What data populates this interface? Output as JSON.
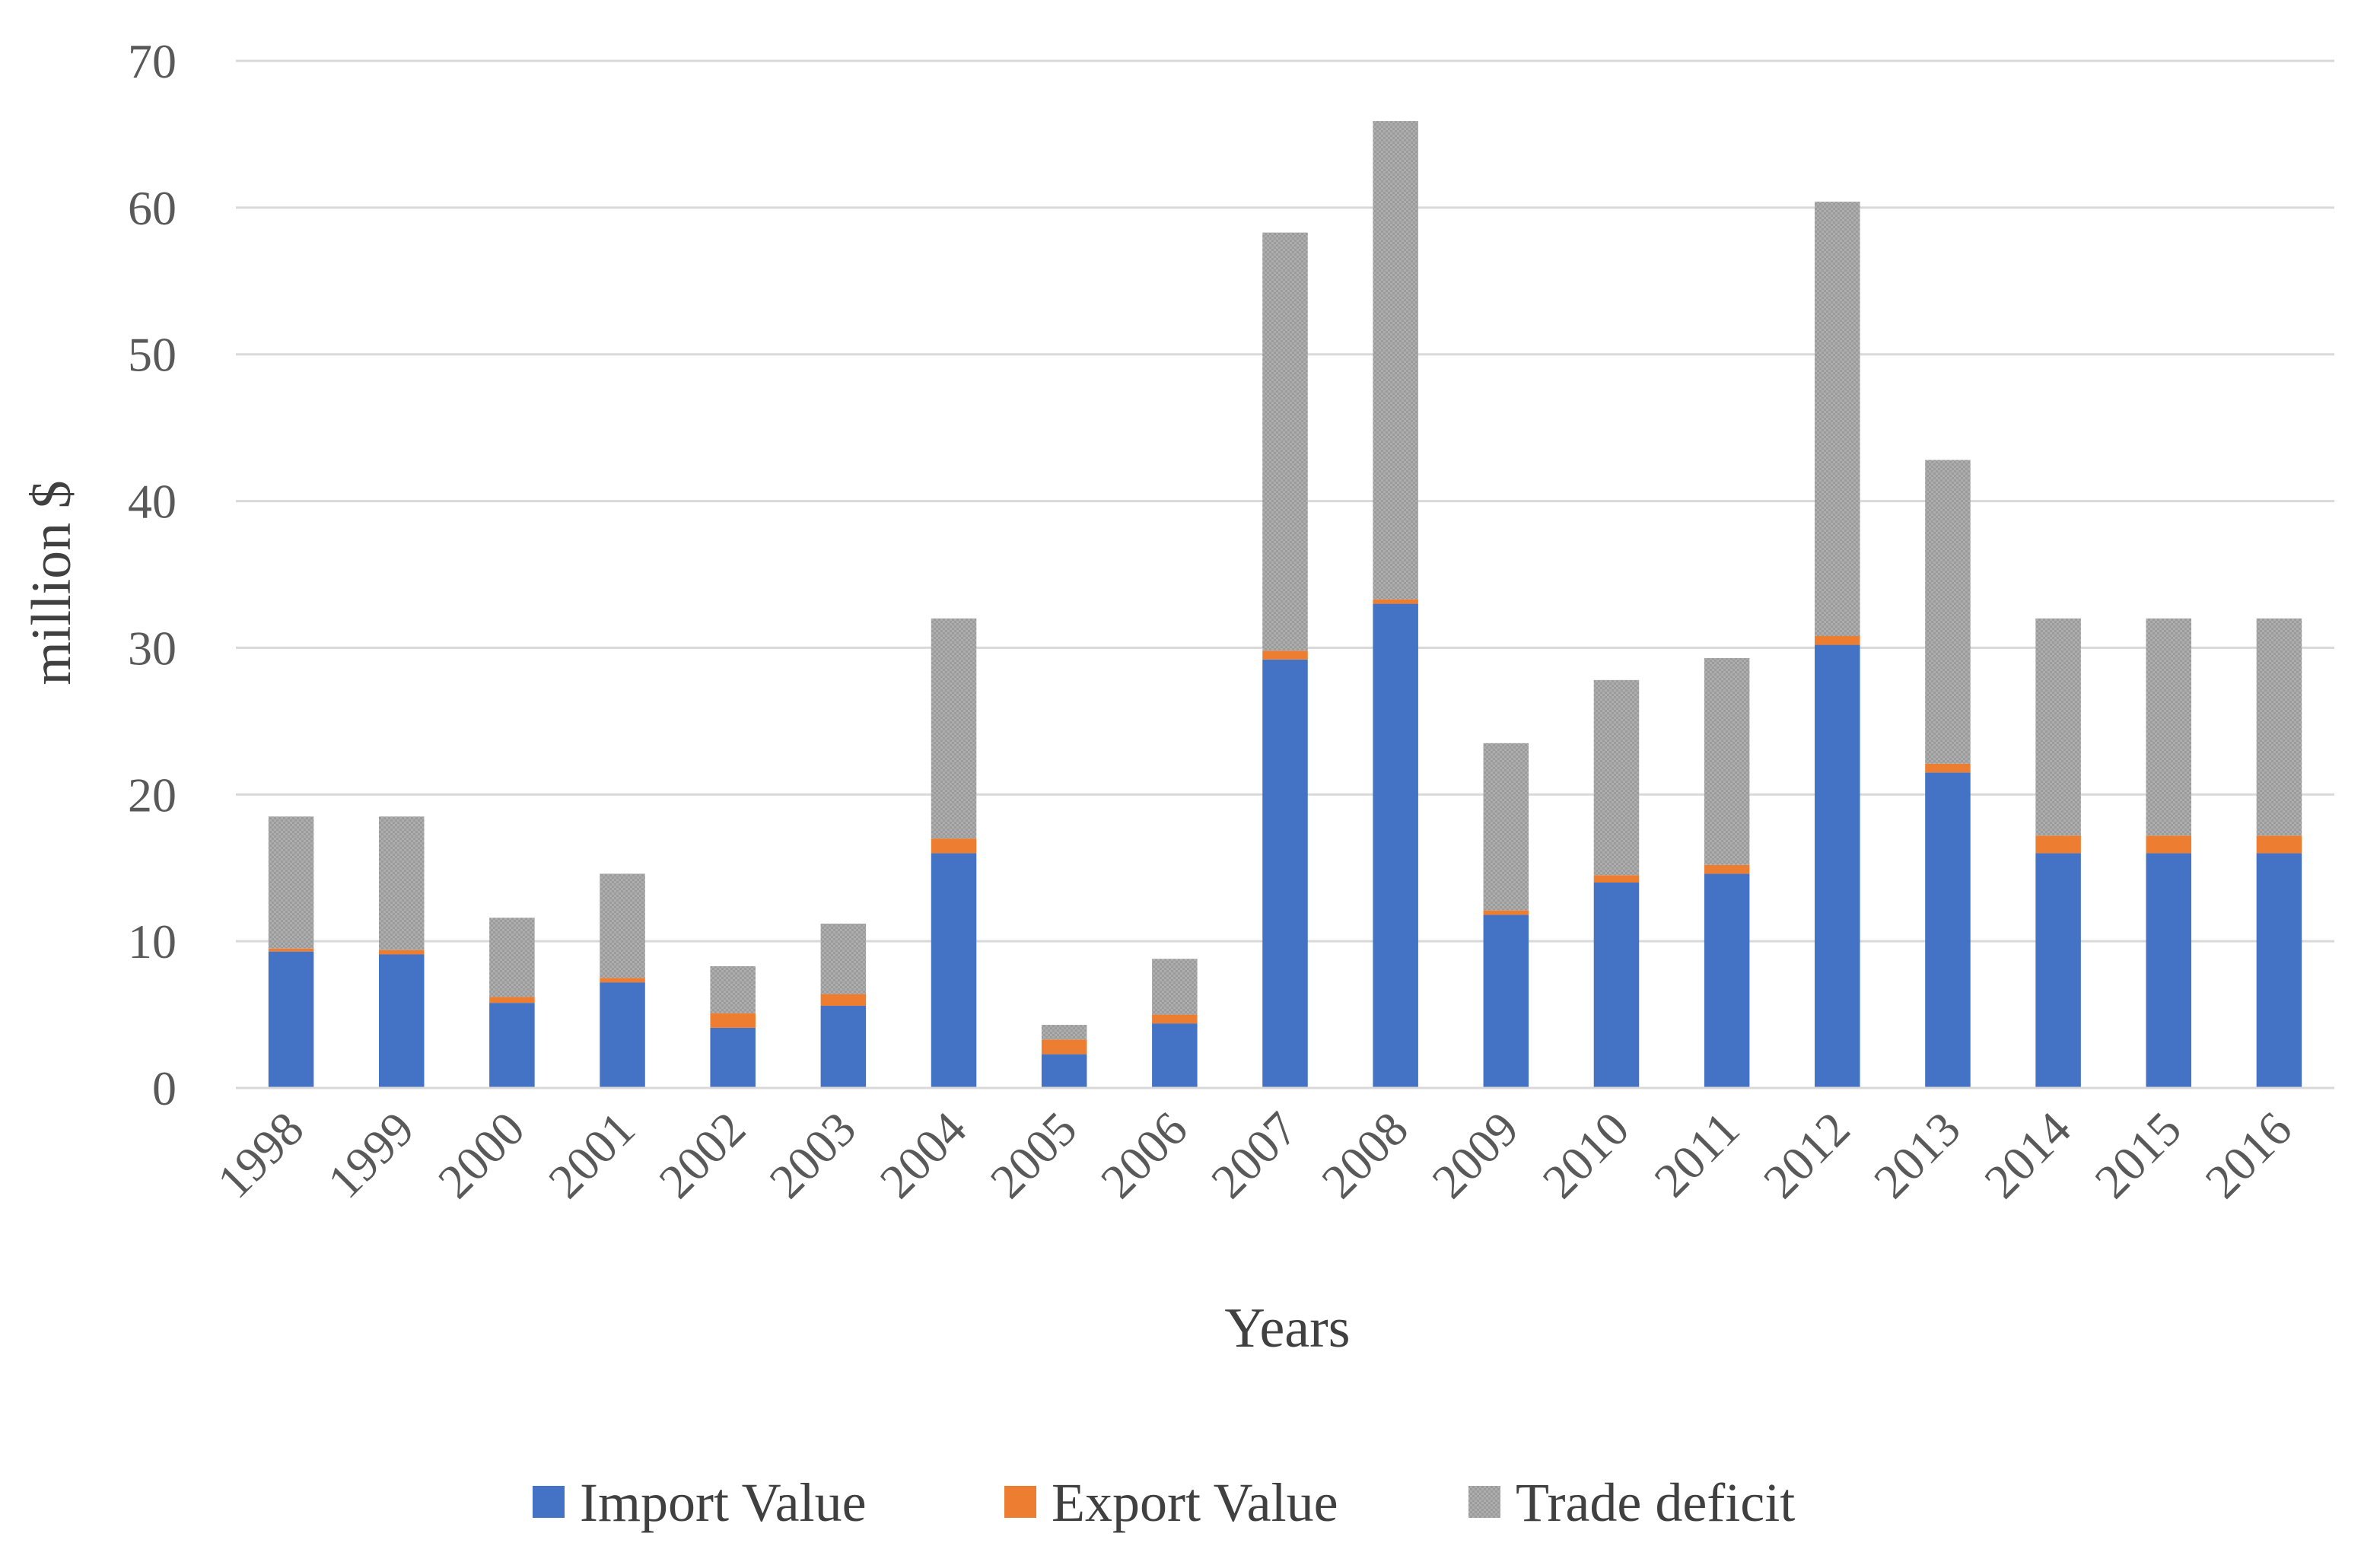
{
  "chart_data": {
    "type": "bar",
    "stacked": true,
    "title": "",
    "xlabel": "Years",
    "ylabel": "million $",
    "ylim": [
      0,
      70
    ],
    "yticks": [
      0,
      10,
      20,
      30,
      40,
      50,
      60,
      70
    ],
    "grid": true,
    "legend_position": "bottom",
    "categories": [
      "1998",
      "1999",
      "2000",
      "2001",
      "2002",
      "2003",
      "2004",
      "2005",
      "2006",
      "2007",
      "2008",
      "2009",
      "2010",
      "2011",
      "2012",
      "2013",
      "2014",
      "2015",
      "2016"
    ],
    "series": [
      {
        "name": "Import Value",
        "color": "#4472C4",
        "values": [
          9.3,
          9.1,
          5.8,
          7.2,
          4.1,
          5.6,
          16.0,
          2.3,
          4.4,
          29.2,
          33.0,
          11.8,
          14.0,
          14.6,
          30.2,
          21.5,
          16.0,
          16.0,
          16.0
        ]
      },
      {
        "name": "Export Value",
        "color": "#ED7D31",
        "values": [
          0.2,
          0.3,
          0.4,
          0.3,
          1.0,
          0.8,
          1.0,
          1.0,
          0.6,
          0.6,
          0.3,
          0.3,
          0.5,
          0.6,
          0.6,
          0.6,
          1.2,
          1.2,
          1.2
        ]
      },
      {
        "name": "Trade deficit",
        "color": "#A5A5A5",
        "values": [
          9.0,
          9.1,
          5.4,
          7.1,
          3.2,
          4.8,
          15.0,
          1.0,
          3.8,
          28.5,
          32.6,
          11.4,
          13.3,
          14.1,
          29.6,
          20.7,
          14.8,
          14.8,
          14.8
        ]
      }
    ]
  }
}
